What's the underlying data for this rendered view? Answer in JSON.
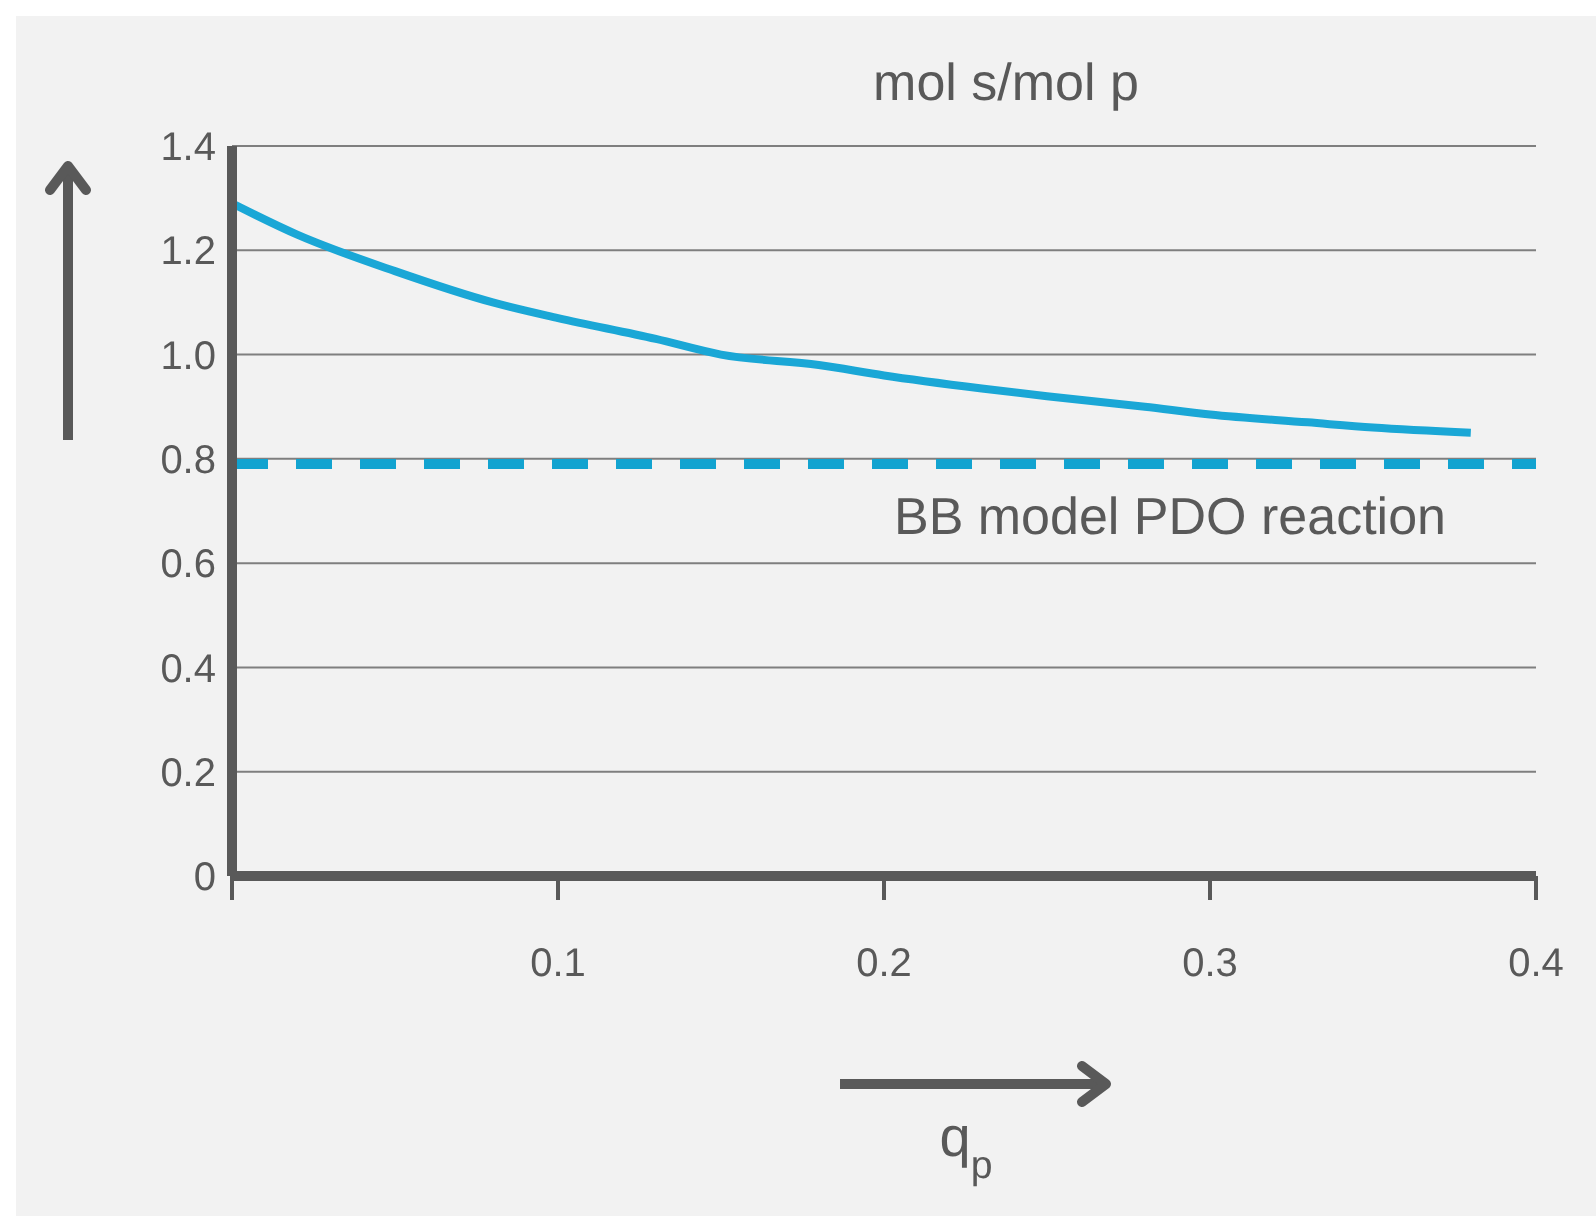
{
  "chart_data": {
    "type": "line",
    "title": "mol s/mol p",
    "xlabel": "q$_{p}$",
    "x": [
      0,
      0.02,
      0.05,
      0.08,
      0.1,
      0.13,
      0.15,
      0.18,
      0.2,
      0.23,
      0.25,
      0.28,
      0.3,
      0.33,
      0.35,
      0.38
    ],
    "series": [
      {
        "color": "#1aa7d6",
        "values": [
          1.29,
          1.23,
          1.16,
          1.1,
          1.07,
          1.03,
          1.0,
          0.98,
          0.96,
          0.935,
          0.92,
          0.9,
          0.885,
          0.87,
          0.86,
          0.85
        ]
      }
    ],
    "xlim": [
      0,
      0.4
    ],
    "xticks": [
      {
        "value": 0,
        "label": null
      },
      0.1,
      0.2,
      0.3,
      0.4
    ],
    "ylim": [
      0,
      1.4
    ],
    "yticks": [
      0,
      0.2,
      0.4,
      0.6,
      {
        "value": 0.8,
        "label": "0.8"
      },
      {
        "value": 1,
        "label": "1.0"
      },
      1.2,
      1.4
    ],
    "ref_lines": [
      {
        "axis": "y",
        "value": 0.79,
        "label": "BB model PDO reaction",
        "color": "#12a3d0",
        "line_style": "dashed"
      }
    ],
    "grid": "y",
    "marker": "none",
    "line_style": "solid",
    "legend": false
  }
}
